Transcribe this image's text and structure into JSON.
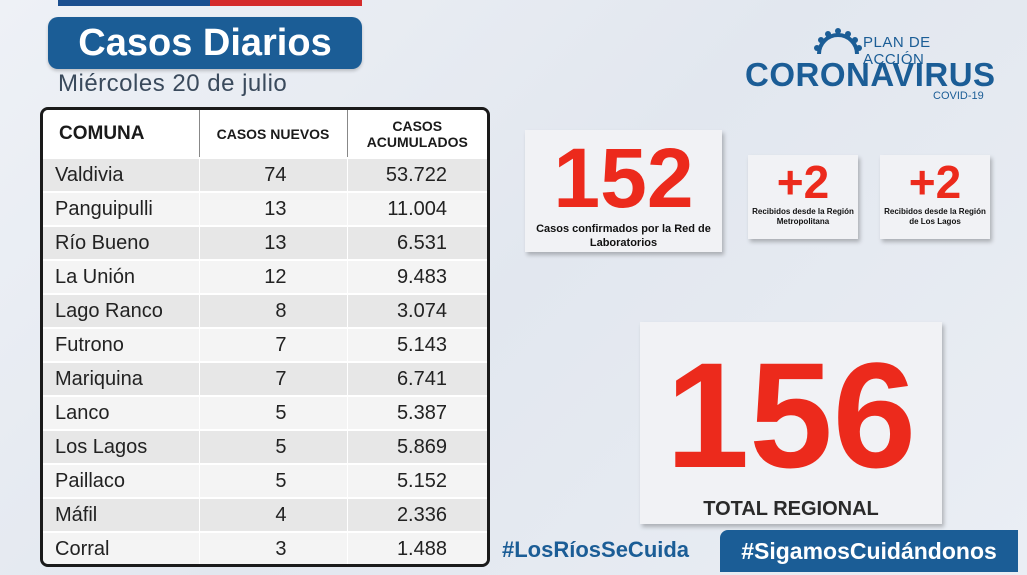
{
  "header": {
    "title": "Casos Diarios",
    "date": "Miércoles 20 de julio"
  },
  "logo": {
    "plan": "PLAN DE ACCIÓN",
    "name": "CORONAVIRUS",
    "sub": "COVID-19"
  },
  "table": {
    "headers": [
      "COMUNA",
      "CASOS NUEVOS",
      "CASOS ACUMULADOS"
    ],
    "rows": [
      {
        "comuna": "Valdivia",
        "nuevos": "74",
        "acumulados": "53.722"
      },
      {
        "comuna": "Panguipulli",
        "nuevos": "13",
        "acumulados": "11.004"
      },
      {
        "comuna": "Río Bueno",
        "nuevos": "13",
        "acumulados": "6.531"
      },
      {
        "comuna": "La Unión",
        "nuevos": "12",
        "acumulados": "9.483"
      },
      {
        "comuna": "Lago Ranco",
        "nuevos": "8",
        "acumulados": "3.074"
      },
      {
        "comuna": "Futrono",
        "nuevos": "7",
        "acumulados": "5.143"
      },
      {
        "comuna": "Mariquina",
        "nuevos": "7",
        "acumulados": "6.741"
      },
      {
        "comuna": "Lanco",
        "nuevos": "5",
        "acumulados": "5.387"
      },
      {
        "comuna": "Los Lagos",
        "nuevos": "5",
        "acumulados": "5.869"
      },
      {
        "comuna": "Paillaco",
        "nuevos": "5",
        "acumulados": "5.152"
      },
      {
        "comuna": "Máfil",
        "nuevos": "4",
        "acumulados": "2.336"
      },
      {
        "comuna": "Corral",
        "nuevos": "3",
        "acumulados": "1.488"
      }
    ]
  },
  "stats": {
    "confirmed": {
      "value": "152",
      "label": "Casos confirmados por la Red de Laboratorios"
    },
    "metro": {
      "value": "+2",
      "label": "Recibidos desde la Región Metropolitana"
    },
    "lagos": {
      "value": "+2",
      "label": "Recibidos desde la Región de Los Lagos"
    },
    "total": {
      "value": "156",
      "label": "TOTAL REGIONAL"
    }
  },
  "footer": {
    "hashtag1": "#LosRíosSeCuida",
    "hashtag2": "#SigamosCuidándonos"
  },
  "colors": {
    "brand_blue": "#1b5d96",
    "accent_red": "#ec2a1c"
  }
}
